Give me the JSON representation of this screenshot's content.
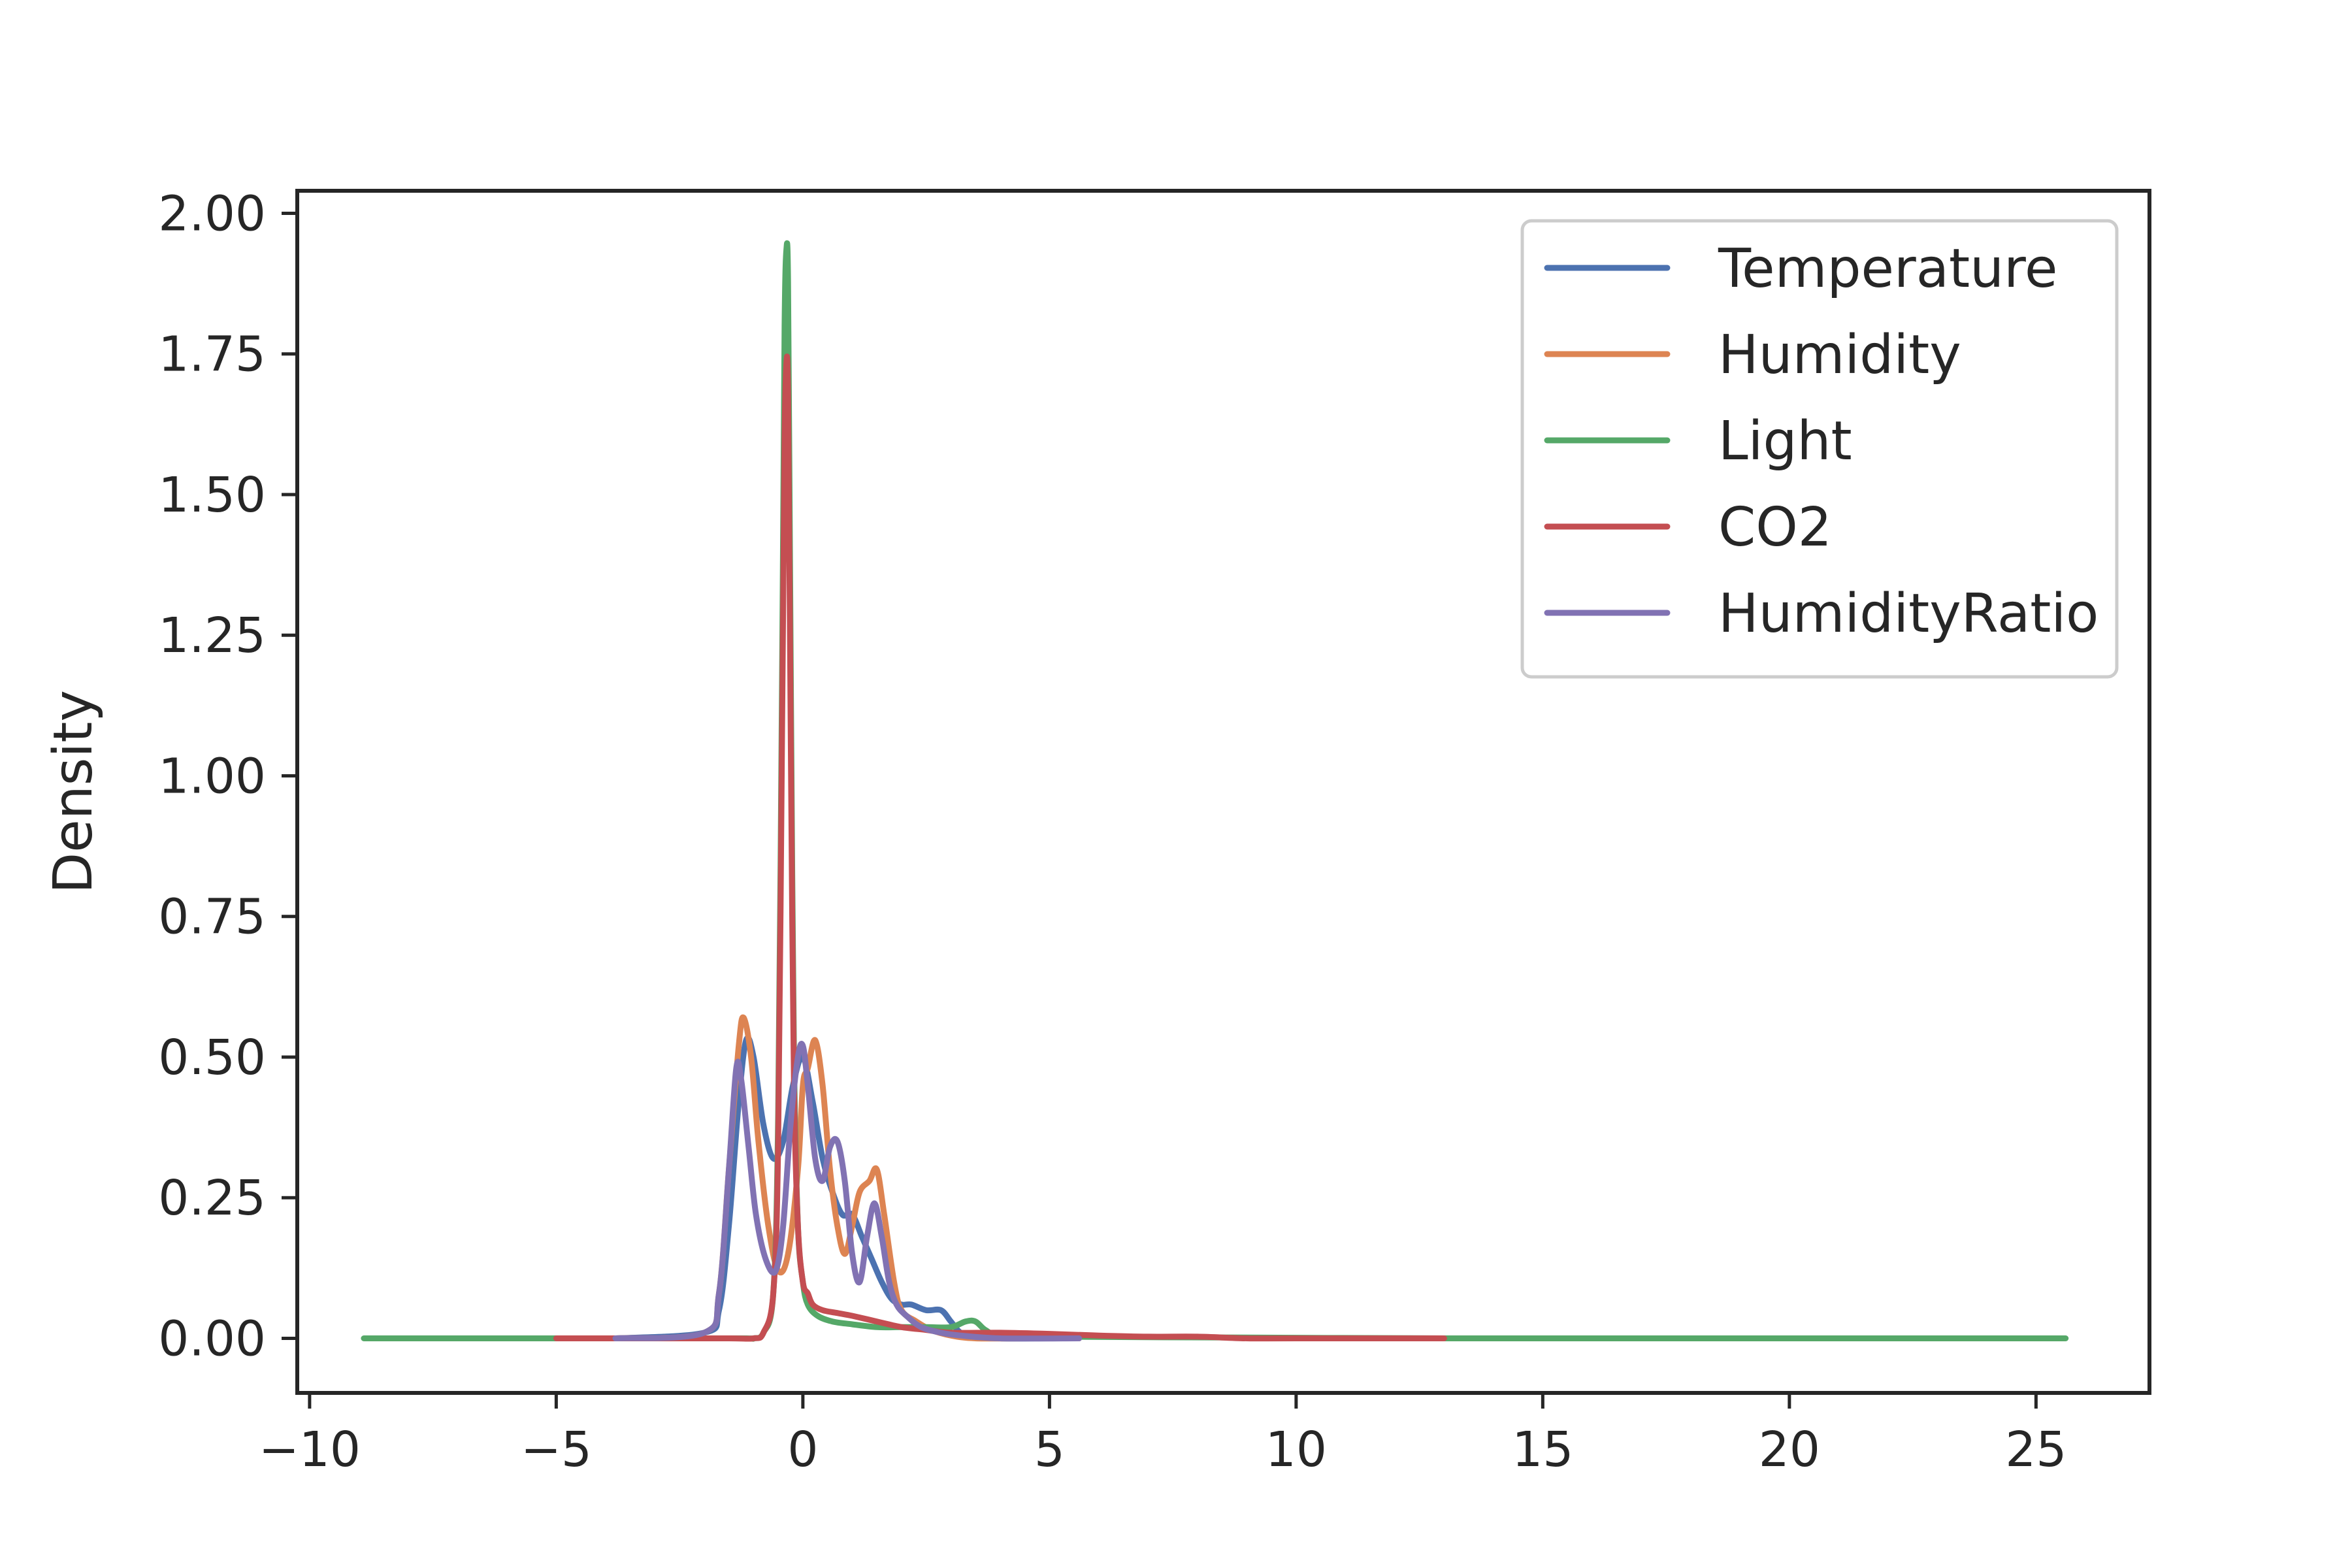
{
  "chart_data": {
    "type": "line",
    "title": "",
    "xlabel": "",
    "ylabel": "Density",
    "xlim": [
      -10.25,
      27.3
    ],
    "ylim": [
      -0.097,
      2.04
    ],
    "xticks": [
      -10,
      -5,
      0,
      5,
      10,
      15,
      20,
      25
    ],
    "xtick_labels": [
      "−10",
      "−5",
      "0",
      "5",
      "10",
      "15",
      "20",
      "25"
    ],
    "yticks": [
      0.0,
      0.25,
      0.5,
      0.75,
      1.0,
      1.25,
      1.5,
      1.75,
      2.0
    ],
    "ytick_labels": [
      "0.00",
      "0.25",
      "0.50",
      "0.75",
      "1.00",
      "1.25",
      "1.50",
      "1.75",
      "2.00"
    ],
    "grid": false,
    "legend_position": "upper right",
    "series": [
      {
        "name": "Temperature",
        "color": "#4c72b0",
        "x": [
          -3.8,
          -2.0,
          -1.7,
          -1.5,
          -1.3,
          -1.15,
          -1.0,
          -0.8,
          -0.6,
          -0.4,
          -0.2,
          0.0,
          0.2,
          0.4,
          0.6,
          0.8,
          1.0,
          1.2,
          1.4,
          1.6,
          1.8,
          2.0,
          2.2,
          2.5,
          2.8,
          3.0,
          3.2,
          3.5,
          4.0,
          5.0,
          5.6
        ],
        "y": [
          0.0,
          0.01,
          0.05,
          0.2,
          0.42,
          0.53,
          0.5,
          0.38,
          0.32,
          0.35,
          0.45,
          0.5,
          0.42,
          0.32,
          0.26,
          0.22,
          0.22,
          0.18,
          0.14,
          0.1,
          0.07,
          0.06,
          0.06,
          0.05,
          0.05,
          0.03,
          0.01,
          0.005,
          0.0,
          0.0,
          0.0
        ]
      },
      {
        "name": "Humidity",
        "color": "#dd8452",
        "x": [
          -3.8,
          -2.0,
          -1.7,
          -1.5,
          -1.3,
          -1.2,
          -1.05,
          -0.9,
          -0.7,
          -0.5,
          -0.3,
          -0.1,
          0.0,
          0.1,
          0.25,
          0.4,
          0.55,
          0.7,
          0.85,
          1.0,
          1.15,
          1.35,
          1.5,
          1.65,
          1.85,
          2.0,
          2.3,
          2.6,
          3.0,
          3.5,
          4.5,
          5.6
        ],
        "y": [
          0.0,
          0.01,
          0.08,
          0.3,
          0.52,
          0.57,
          0.5,
          0.35,
          0.2,
          0.12,
          0.15,
          0.3,
          0.45,
          0.48,
          0.53,
          0.45,
          0.3,
          0.2,
          0.15,
          0.2,
          0.26,
          0.28,
          0.3,
          0.22,
          0.1,
          0.05,
          0.03,
          0.015,
          0.005,
          0.0,
          0.0,
          0.0
        ]
      },
      {
        "name": "Light",
        "color": "#55a868",
        "x": [
          -8.9,
          -3.0,
          -1.2,
          -1.0,
          -0.8,
          -0.6,
          -0.5,
          -0.42,
          -0.37,
          -0.33,
          -0.3,
          -0.27,
          -0.23,
          -0.18,
          -0.1,
          0.0,
          0.1,
          0.3,
          0.6,
          1.0,
          1.5,
          2.0,
          2.5,
          3.0,
          3.3,
          3.5,
          3.7,
          4.0,
          5.0,
          7.0,
          10.0,
          13.0,
          17.0,
          21.0,
          25.6
        ],
        "y": [
          0.0,
          0.0,
          0.0,
          0.0,
          0.01,
          0.08,
          0.4,
          1.2,
          1.8,
          1.94,
          1.88,
          1.5,
          1.0,
          0.5,
          0.2,
          0.1,
          0.06,
          0.04,
          0.03,
          0.025,
          0.02,
          0.02,
          0.02,
          0.02,
          0.03,
          0.03,
          0.015,
          0.005,
          0.003,
          0.002,
          0.001,
          0.0,
          0.0,
          0.0,
          0.0
        ]
      },
      {
        "name": "CO2",
        "color": "#c44e52",
        "x": [
          -5.0,
          -3.0,
          -1.5,
          -1.0,
          -0.8,
          -0.6,
          -0.5,
          -0.42,
          -0.37,
          -0.33,
          -0.3,
          -0.27,
          -0.23,
          -0.18,
          -0.1,
          0.0,
          0.1,
          0.2,
          0.4,
          0.7,
          1.0,
          1.5,
          2.0,
          2.5,
          3.0,
          4.0,
          5.0,
          6.0,
          7.0,
          8.0,
          9.0,
          10.0,
          13.0
        ],
        "y": [
          0.0,
          0.0,
          0.0,
          0.0,
          0.01,
          0.08,
          0.35,
          1.1,
          1.6,
          1.74,
          1.68,
          1.35,
          0.9,
          0.45,
          0.2,
          0.1,
          0.08,
          0.06,
          0.05,
          0.045,
          0.04,
          0.03,
          0.02,
          0.015,
          0.01,
          0.01,
          0.008,
          0.005,
          0.003,
          0.003,
          0.0,
          0.0,
          0.0
        ]
      },
      {
        "name": "HumidityRatio",
        "color": "#8172b3",
        "x": [
          -3.8,
          -2.0,
          -1.7,
          -1.5,
          -1.35,
          -1.25,
          -1.1,
          -0.95,
          -0.75,
          -0.55,
          -0.4,
          -0.25,
          -0.1,
          0.0,
          0.1,
          0.25,
          0.4,
          0.55,
          0.7,
          0.85,
          1.0,
          1.15,
          1.3,
          1.45,
          1.6,
          1.75,
          1.9,
          2.1,
          2.4,
          2.8,
          3.2,
          4.0,
          5.6
        ],
        "y": [
          0.0,
          0.01,
          0.08,
          0.3,
          0.48,
          0.46,
          0.34,
          0.22,
          0.14,
          0.12,
          0.2,
          0.38,
          0.5,
          0.52,
          0.45,
          0.32,
          0.28,
          0.34,
          0.35,
          0.28,
          0.15,
          0.1,
          0.18,
          0.24,
          0.18,
          0.1,
          0.06,
          0.04,
          0.02,
          0.01,
          0.005,
          0.0,
          0.0
        ]
      }
    ]
  }
}
